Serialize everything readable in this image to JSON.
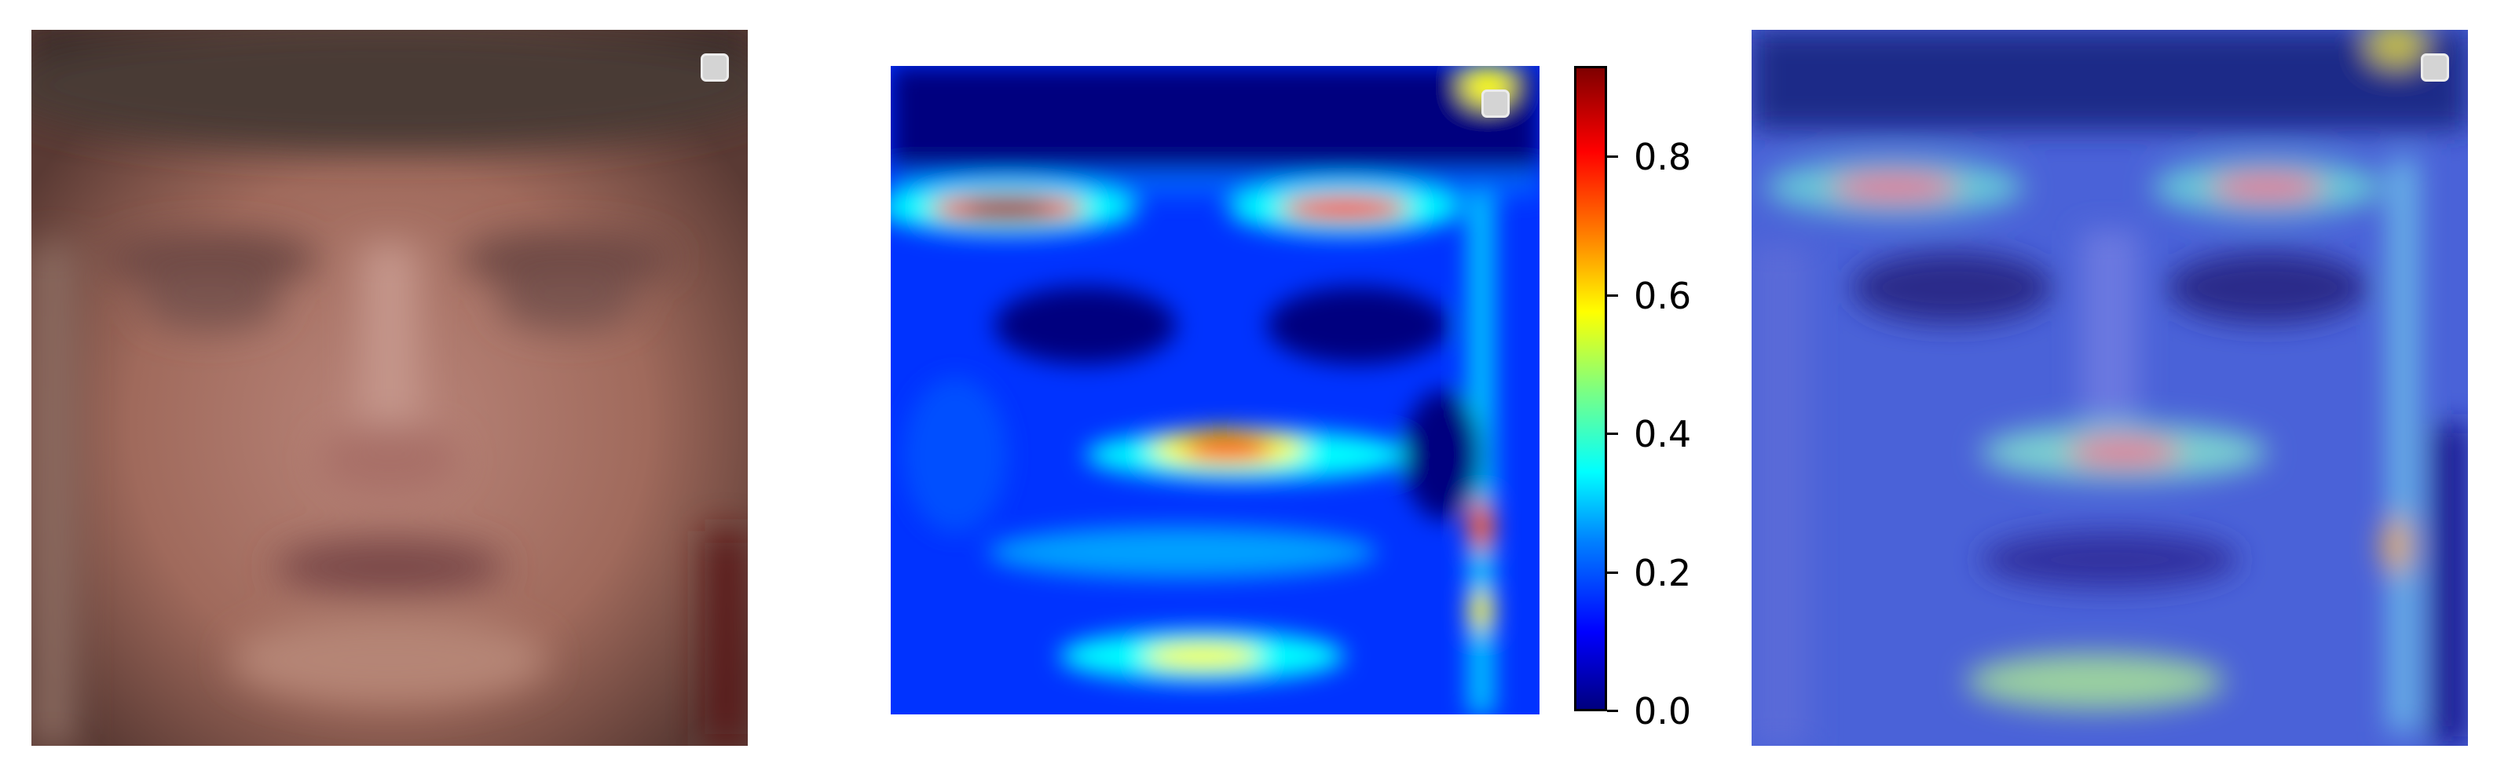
{
  "colorbar": {
    "ticks": [
      "0.0",
      "0.2",
      "0.4",
      "0.6",
      "0.8"
    ],
    "range": [
      0.0,
      0.92
    ],
    "colormap": "jet"
  },
  "panels": {
    "face": "grayscale-ish face photo, brownish tones",
    "heatmap": "jet heatmap with hot spots at eyebrows and nose tip",
    "overlay": "heatmap blended over face photo"
  },
  "colors": {
    "low": "#00007f",
    "mid": "#00ffff",
    "high": "#7f0000"
  }
}
